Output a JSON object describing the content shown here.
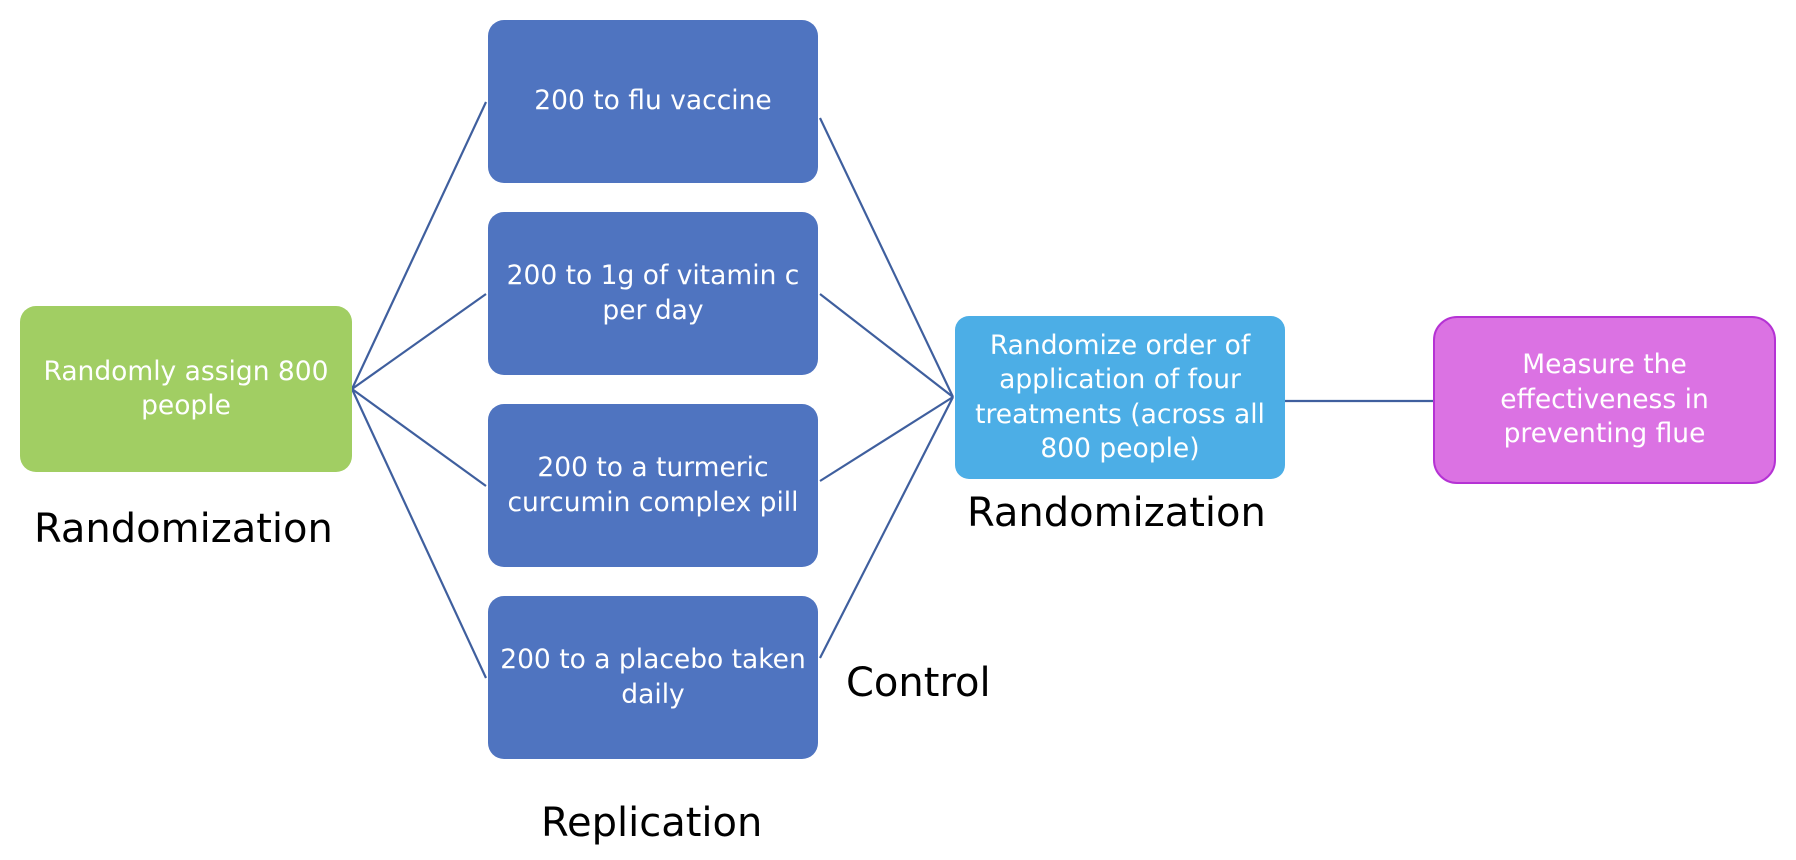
{
  "nodes": {
    "assign": "Randomly assign 800 people",
    "flu_vaccine": "200 to flu vaccine",
    "vitamin_c": "200 to 1g of vitamin c per day",
    "turmeric": "200 to a turmeric curcumin complex pill",
    "placebo": "200 to a placebo taken daily",
    "randomize_order": "Randomize order of application of four treatments (across all 800 people)",
    "measure": "Measure the effectiveness in preventing flue"
  },
  "labels": {
    "randomization_left": "Randomization",
    "randomization_right": "Randomization",
    "control": "Control",
    "replication": "Replication"
  },
  "colors": {
    "assign_box": "#a1ce63",
    "treatment_boxes": "#4f74c0",
    "randomize_box": "#4caee6",
    "measure_box": "#db72e3",
    "measure_border": "#b532d4",
    "connectors": "#3f5f9e"
  }
}
